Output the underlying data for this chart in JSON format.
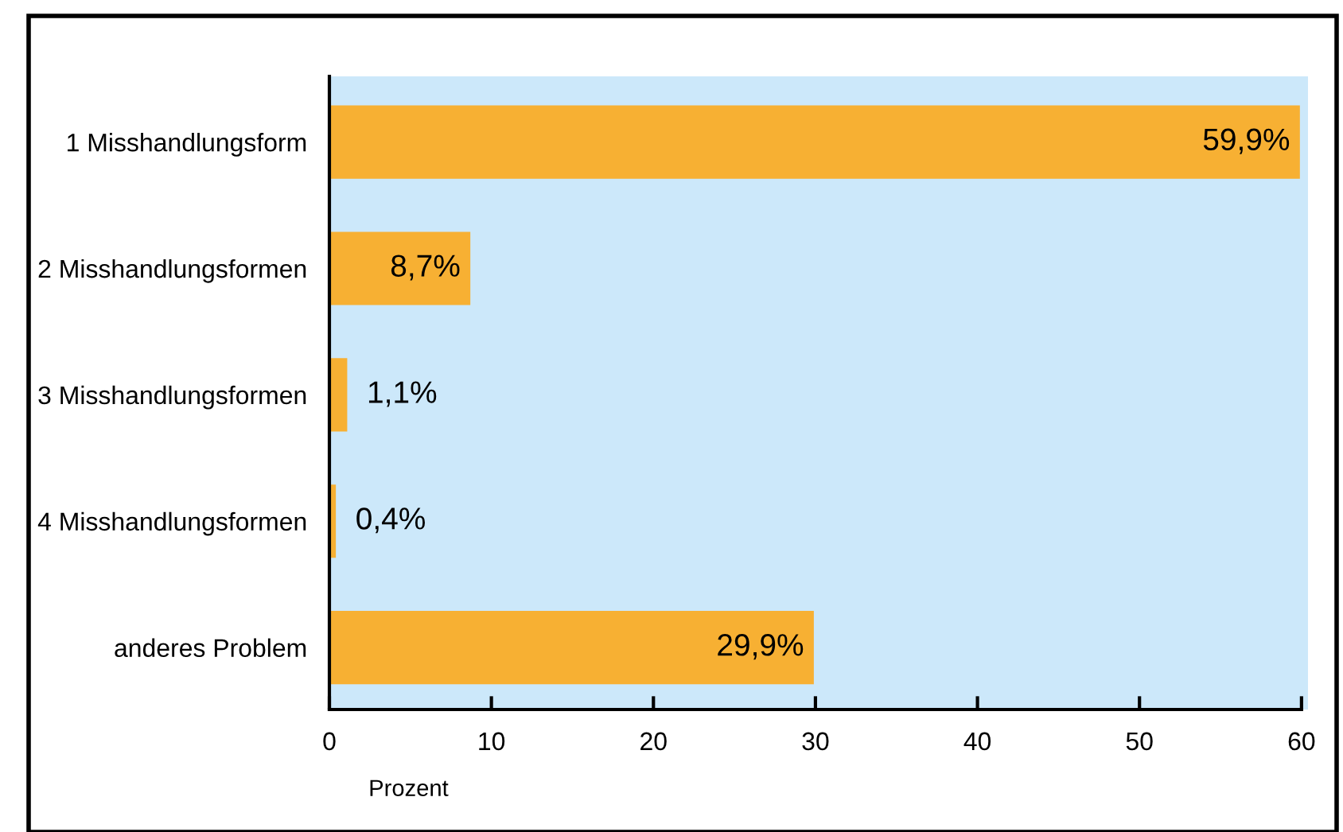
{
  "chart_data": {
    "type": "bar",
    "orientation": "horizontal",
    "xlabel": "Prozent",
    "categories": [
      "1 Misshandlungsform",
      "2 Misshandlungsformen",
      "3 Misshandlungsformen",
      "4 Misshandlungsformen",
      "anderes Problem"
    ],
    "values": [
      59.9,
      8.7,
      1.1,
      0.4,
      29.9
    ],
    "value_labels": [
      "59,9%",
      "8,7%",
      "1,1%",
      "0,4%",
      "29,9%"
    ],
    "color": "#f7b033",
    "xlim": [
      0,
      60.4
    ],
    "xticks": [
      0,
      10,
      20,
      30,
      40,
      50,
      60
    ],
    "grid": false,
    "legend": false
  }
}
